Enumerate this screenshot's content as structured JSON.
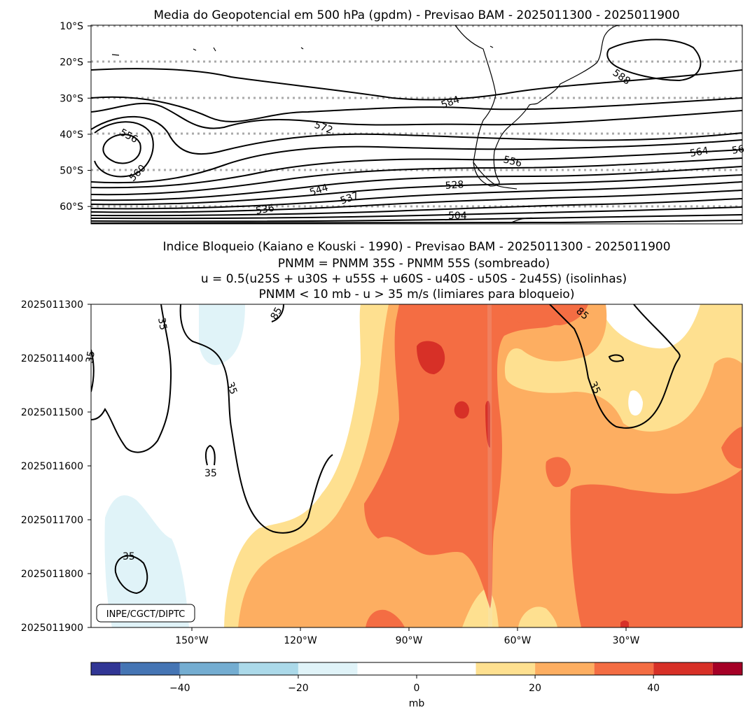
{
  "chart_data": [
    {
      "type": "contour_map",
      "title": "Media do Geopotencial em 500 hPa (gpdm) - Previsao BAM - 2025011300 - 2025011900",
      "ytick_labels": [
        "10°S",
        "20°S",
        "30°S",
        "40°S",
        "50°S",
        "60°S"
      ],
      "lat_ticks": [
        -10,
        -20,
        -30,
        -40,
        -50,
        -60
      ],
      "lat_range": [
        -10,
        -65
      ],
      "lon_range": [
        -180,
        0
      ],
      "contour_labels": [
        "588",
        "584",
        "572",
        "556",
        "560",
        "564",
        "56",
        "556",
        "544",
        "537",
        "536",
        "528",
        "504"
      ]
    },
    {
      "type": "heatmap_contour",
      "title_lines": [
        "Indice Bloqueio (Kaiano e Kouski - 1990) - Previsao BAM - 2025011300 - 2025011900",
        "PNMM = PNMM 35S - PNMM 55S (sombreado)",
        "u = 0.5(u25S + u30S + u55S + u60S - u40S - u50S - 2u45S) (isolinhas)",
        "PNMM < 10 mb - u > 35 m/s (limiares para bloqueio)"
      ],
      "ytick_labels": [
        "2025011300",
        "2025011400",
        "2025011500",
        "2025011600",
        "2025011700",
        "2025011800",
        "2025011900"
      ],
      "xtick_labels": [
        "150°W",
        "120°W",
        "90°W",
        "60°W",
        "30°W"
      ],
      "x_ticks_lon": [
        -150,
        -120,
        -90,
        -60,
        -30
      ],
      "x_range": [
        -180,
        0
      ],
      "contour_labels": [
        "35",
        "85",
        "35",
        "35",
        "85",
        "35",
        "35",
        "35"
      ],
      "annotation": "INPE/CGCT/DIPTC"
    },
    {
      "type": "colorbar",
      "levels": [
        -55,
        -50,
        -40,
        -30,
        -20,
        -10,
        10,
        20,
        30,
        40,
        50,
        55
      ],
      "colors": [
        "#313695",
        "#4575b4",
        "#74add1",
        "#abd9e9",
        "#e0f3f8",
        "#ffffff",
        "#fee090",
        "#fdae61",
        "#f46d43",
        "#d73027",
        "#a50026"
      ],
      "tick_values": [
        -40,
        -20,
        0,
        20,
        40
      ],
      "tick_labels": [
        "−40",
        "−20",
        "0",
        "20",
        "40"
      ],
      "label": "mb"
    }
  ]
}
